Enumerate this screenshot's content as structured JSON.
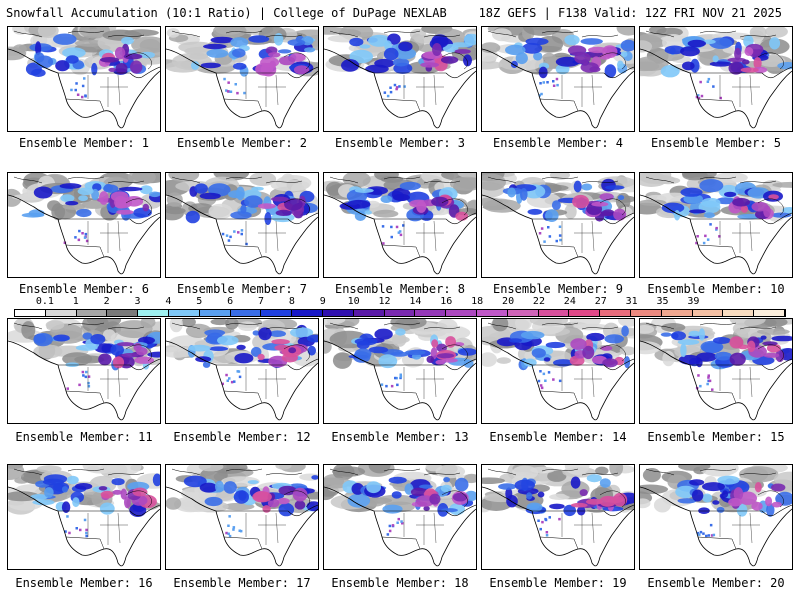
{
  "header": {
    "title_left": "Snowfall Accumulation (10:1 Ratio) | College of DuPage NEXLAB",
    "title_right": "18Z GEFS | F138 Valid: 12Z FRI NOV 21 2025"
  },
  "members": [
    "Ensemble Member: 1",
    "Ensemble Member: 2",
    "Ensemble Member: 3",
    "Ensemble Member: 4",
    "Ensemble Member: 5",
    "Ensemble Member: 6",
    "Ensemble Member: 7",
    "Ensemble Member: 8",
    "Ensemble Member: 9",
    "Ensemble Member: 10",
    "Ensemble Member: 11",
    "Ensemble Member: 12",
    "Ensemble Member: 13",
    "Ensemble Member: 14",
    "Ensemble Member: 15",
    "Ensemble Member: 16",
    "Ensemble Member: 17",
    "Ensemble Member: 18",
    "Ensemble Member: 19",
    "Ensemble Member: 20"
  ],
  "colorbar": {
    "labels": [
      "0.1",
      "1",
      "2",
      "3",
      "4",
      "5",
      "6",
      "7",
      "8",
      "9",
      "10",
      "12",
      "14",
      "16",
      "18",
      "20",
      "22",
      "24",
      "27",
      "31",
      "35",
      "39"
    ],
    "colors": [
      "#ffffff",
      "#d9d9d9",
      "#a6a6a6",
      "#7a7a7a",
      "#9ef0f0",
      "#7fc8f8",
      "#5aa0f0",
      "#3a6ee8",
      "#2040e0",
      "#1818c8",
      "#3010b0",
      "#5a1aa8",
      "#7a2ab0",
      "#9438b8",
      "#ac48c0",
      "#c058c8",
      "#cf64b8",
      "#d8509c",
      "#e04888",
      "#e86c7c",
      "#ec8a80",
      "#f0a890",
      "#f4c0a4",
      "#f8dcc0",
      "#fbeedc"
    ]
  }
}
